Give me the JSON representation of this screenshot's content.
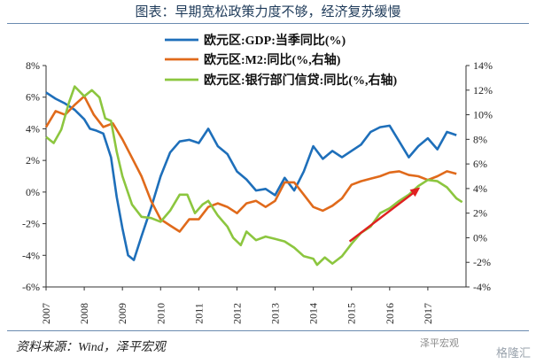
{
  "header": {
    "title": "图表：早期宽松政策力度不够，经济复苏缓慢"
  },
  "footer": {
    "source": "资料来源：Wind，泽平宏观",
    "watermark": "格隆汇",
    "wechat": "泽平宏观"
  },
  "colors": {
    "gdp": "#1e6fba",
    "m2": "#e06a1b",
    "credit": "#8cc63f",
    "arrow": "#e02020",
    "axis": "#333333"
  },
  "chart_data": {
    "type": "line",
    "title": "图表：早期宽松政策力度不够，经济复苏缓慢",
    "x_ticks": [
      "2007",
      "2008",
      "2009",
      "2010",
      "2011",
      "2012",
      "2013",
      "2014",
      "2015",
      "2016",
      "2017"
    ],
    "y_left": {
      "ticks": [
        "8%",
        "6%",
        "4%",
        "2%",
        "0%",
        "-2%",
        "-4%",
        "-6%"
      ],
      "range": [
        -6,
        8
      ]
    },
    "y_right": {
      "ticks": [
        "14%",
        "12%",
        "10%",
        "8%",
        "6%",
        "4%",
        "2%",
        "0%",
        "-2%",
        "-4%"
      ],
      "range": [
        -4,
        14
      ]
    },
    "legend_position": "top-center",
    "series": [
      {
        "name": "欧元区:GDP:当季同比(%)",
        "axis": "left",
        "color": "#1e6fba",
        "points": [
          [
            2007.0,
            6.3
          ],
          [
            2007.25,
            5.9
          ],
          [
            2007.5,
            5.6
          ],
          [
            2007.75,
            5.2
          ],
          [
            2008.0,
            4.6
          ],
          [
            2008.15,
            4.0
          ],
          [
            2008.3,
            3.9
          ],
          [
            2008.5,
            3.7
          ],
          [
            2008.7,
            2.2
          ],
          [
            2008.85,
            -0.3
          ],
          [
            2009.0,
            -2.3
          ],
          [
            2009.15,
            -4.0
          ],
          [
            2009.3,
            -4.3
          ],
          [
            2009.5,
            -2.8
          ],
          [
            2009.75,
            -1.0
          ],
          [
            2010.0,
            1.0
          ],
          [
            2010.25,
            2.5
          ],
          [
            2010.5,
            3.2
          ],
          [
            2010.75,
            3.3
          ],
          [
            2011.0,
            3.1
          ],
          [
            2011.25,
            4.0
          ],
          [
            2011.5,
            2.9
          ],
          [
            2011.75,
            2.4
          ],
          [
            2012.0,
            1.3
          ],
          [
            2012.25,
            0.8
          ],
          [
            2012.5,
            0.1
          ],
          [
            2012.75,
            0.2
          ],
          [
            2013.0,
            -0.2
          ],
          [
            2013.25,
            0.9
          ],
          [
            2013.5,
            0.1
          ],
          [
            2013.75,
            1.3
          ],
          [
            2014.0,
            2.9
          ],
          [
            2014.25,
            2.1
          ],
          [
            2014.5,
            2.6
          ],
          [
            2014.75,
            2.2
          ],
          [
            2015.0,
            2.6
          ],
          [
            2015.25,
            3.0
          ],
          [
            2015.5,
            3.8
          ],
          [
            2015.75,
            4.1
          ],
          [
            2016.0,
            4.2
          ],
          [
            2016.25,
            3.2
          ],
          [
            2016.5,
            2.2
          ],
          [
            2016.75,
            2.9
          ],
          [
            2017.0,
            3.4
          ],
          [
            2017.25,
            2.7
          ],
          [
            2017.5,
            3.8
          ],
          [
            2017.75,
            3.6
          ]
        ]
      },
      {
        "name": "欧元区:M2:同比(%,右轴)",
        "axis": "right",
        "color": "#e06a1b",
        "points": [
          [
            2007.0,
            9.0
          ],
          [
            2007.25,
            10.3
          ],
          [
            2007.5,
            10.0
          ],
          [
            2007.75,
            10.8
          ],
          [
            2008.0,
            11.5
          ],
          [
            2008.25,
            10.0
          ],
          [
            2008.5,
            9.0
          ],
          [
            2008.75,
            9.3
          ],
          [
            2009.0,
            8.0
          ],
          [
            2009.25,
            6.5
          ],
          [
            2009.5,
            5.0
          ],
          [
            2009.75,
            3.0
          ],
          [
            2010.0,
            1.5
          ],
          [
            2010.25,
            1.0
          ],
          [
            2010.5,
            0.5
          ],
          [
            2010.75,
            1.5
          ],
          [
            2011.0,
            1.5
          ],
          [
            2011.25,
            2.5
          ],
          [
            2011.5,
            2.8
          ],
          [
            2011.75,
            2.5
          ],
          [
            2012.0,
            2.0
          ],
          [
            2012.25,
            2.8
          ],
          [
            2012.5,
            3.0
          ],
          [
            2012.75,
            2.5
          ],
          [
            2013.0,
            3.0
          ],
          [
            2013.25,
            4.5
          ],
          [
            2013.5,
            4.5
          ],
          [
            2013.75,
            3.5
          ],
          [
            2014.0,
            2.5
          ],
          [
            2014.25,
            2.2
          ],
          [
            2014.5,
            2.6
          ],
          [
            2014.75,
            3.2
          ],
          [
            2015.0,
            4.3
          ],
          [
            2015.25,
            4.6
          ],
          [
            2015.5,
            4.8
          ],
          [
            2015.75,
            5.0
          ],
          [
            2016.0,
            5.3
          ],
          [
            2016.25,
            5.4
          ],
          [
            2016.5,
            5.1
          ],
          [
            2016.75,
            5.0
          ],
          [
            2017.0,
            4.7
          ],
          [
            2017.25,
            5.0
          ],
          [
            2017.5,
            5.4
          ],
          [
            2017.75,
            5.2
          ]
        ]
      },
      {
        "name": "欧元区:银行部门信贷:同比(%,右轴)",
        "axis": "right",
        "color": "#8cc63f",
        "points": [
          [
            2007.0,
            8.2
          ],
          [
            2007.2,
            7.7
          ],
          [
            2007.4,
            8.8
          ],
          [
            2007.6,
            11.0
          ],
          [
            2007.75,
            12.3
          ],
          [
            2008.0,
            11.5
          ],
          [
            2008.2,
            12.0
          ],
          [
            2008.4,
            11.4
          ],
          [
            2008.55,
            9.7
          ],
          [
            2008.7,
            9.5
          ],
          [
            2008.85,
            7.0
          ],
          [
            2009.0,
            5.0
          ],
          [
            2009.25,
            2.7
          ],
          [
            2009.5,
            1.7
          ],
          [
            2009.75,
            1.6
          ],
          [
            2010.0,
            1.3
          ],
          [
            2010.25,
            2.2
          ],
          [
            2010.5,
            3.5
          ],
          [
            2010.7,
            3.5
          ],
          [
            2010.9,
            2.0
          ],
          [
            2011.1,
            2.7
          ],
          [
            2011.25,
            3.0
          ],
          [
            2011.5,
            1.8
          ],
          [
            2011.75,
            0.9
          ],
          [
            2011.9,
            0.0
          ],
          [
            2012.1,
            -0.6
          ],
          [
            2012.25,
            0.5
          ],
          [
            2012.5,
            -0.2
          ],
          [
            2012.75,
            0.1
          ],
          [
            2013.0,
            -0.1
          ],
          [
            2013.25,
            -0.3
          ],
          [
            2013.5,
            -0.8
          ],
          [
            2013.75,
            -1.5
          ],
          [
            2014.0,
            -1.7
          ],
          [
            2014.1,
            -2.2
          ],
          [
            2014.3,
            -1.6
          ],
          [
            2014.5,
            -2.1
          ],
          [
            2014.75,
            -1.5
          ],
          [
            2015.0,
            -0.5
          ],
          [
            2015.25,
            0.4
          ],
          [
            2015.5,
            0.9
          ],
          [
            2015.75,
            2.0
          ],
          [
            2016.0,
            2.4
          ],
          [
            2016.25,
            3.0
          ],
          [
            2016.5,
            3.5
          ],
          [
            2016.75,
            4.2
          ],
          [
            2017.0,
            4.7
          ],
          [
            2017.25,
            4.6
          ],
          [
            2017.5,
            4.1
          ],
          [
            2017.75,
            3.2
          ],
          [
            2017.9,
            2.9
          ]
        ]
      }
    ]
  }
}
